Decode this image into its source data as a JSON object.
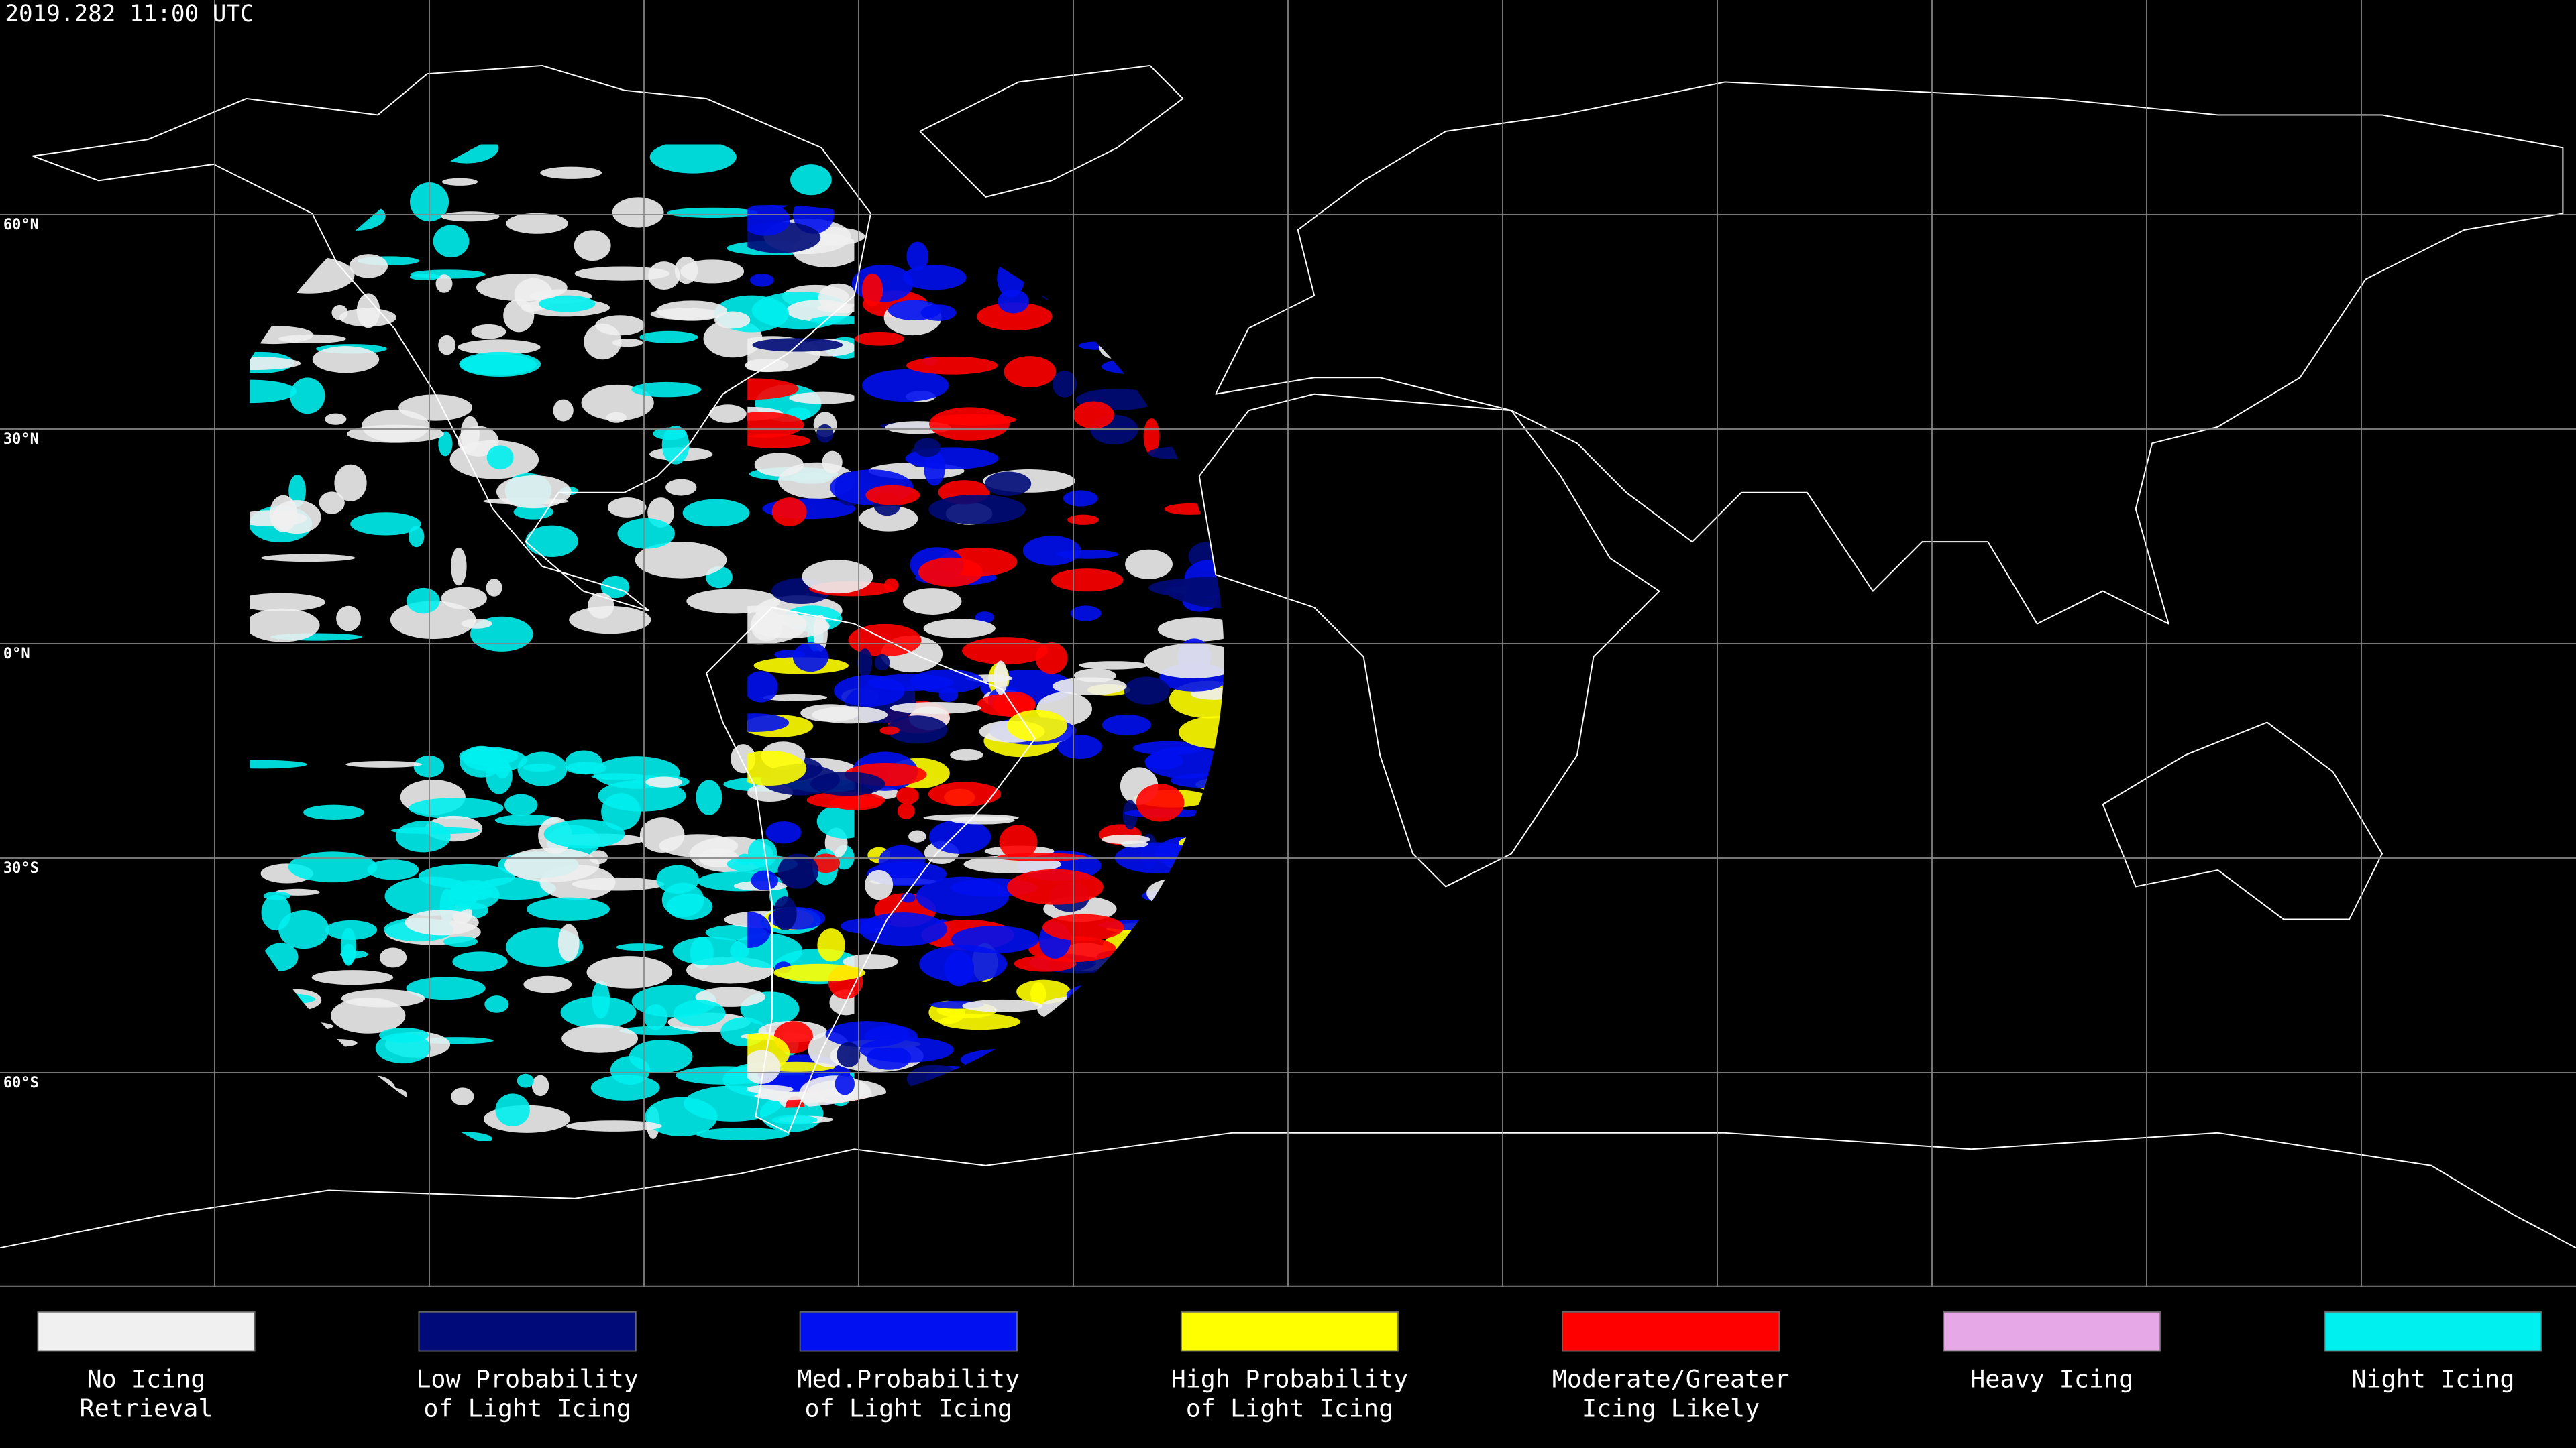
{
  "timestamp": "2019.282 11:00 UTC",
  "map": {
    "lat_lines": [
      {
        "value": 60,
        "label": "60°N"
      },
      {
        "value": 30,
        "label": "30°N"
      },
      {
        "value": 0,
        "label": "0°N"
      },
      {
        "value": -30,
        "label": "30°S"
      },
      {
        "value": -60,
        "label": "60°S"
      }
    ],
    "lon_lines": [
      -150,
      -120,
      -90,
      -60,
      -30,
      0,
      30,
      60,
      90,
      120,
      150
    ]
  },
  "legend": [
    {
      "label": [
        "No Icing",
        "Retrieval"
      ],
      "color": "#f0f0f0"
    },
    {
      "label": [
        "Low Probability",
        "of Light Icing"
      ],
      "color": "#000a78"
    },
    {
      "label": [
        "Med.Probability",
        "of Light Icing"
      ],
      "color": "#0010f0"
    },
    {
      "label": [
        "High Probability",
        "of Light Icing"
      ],
      "color": "#ffff00"
    },
    {
      "label": [
        "Moderate/Greater",
        "Icing Likely"
      ],
      "color": "#ff0000"
    },
    {
      "label": [
        "Heavy Icing"
      ],
      "color": "#e6a8e6"
    },
    {
      "label": [
        "Night Icing"
      ],
      "color": "#00f0f0"
    }
  ]
}
